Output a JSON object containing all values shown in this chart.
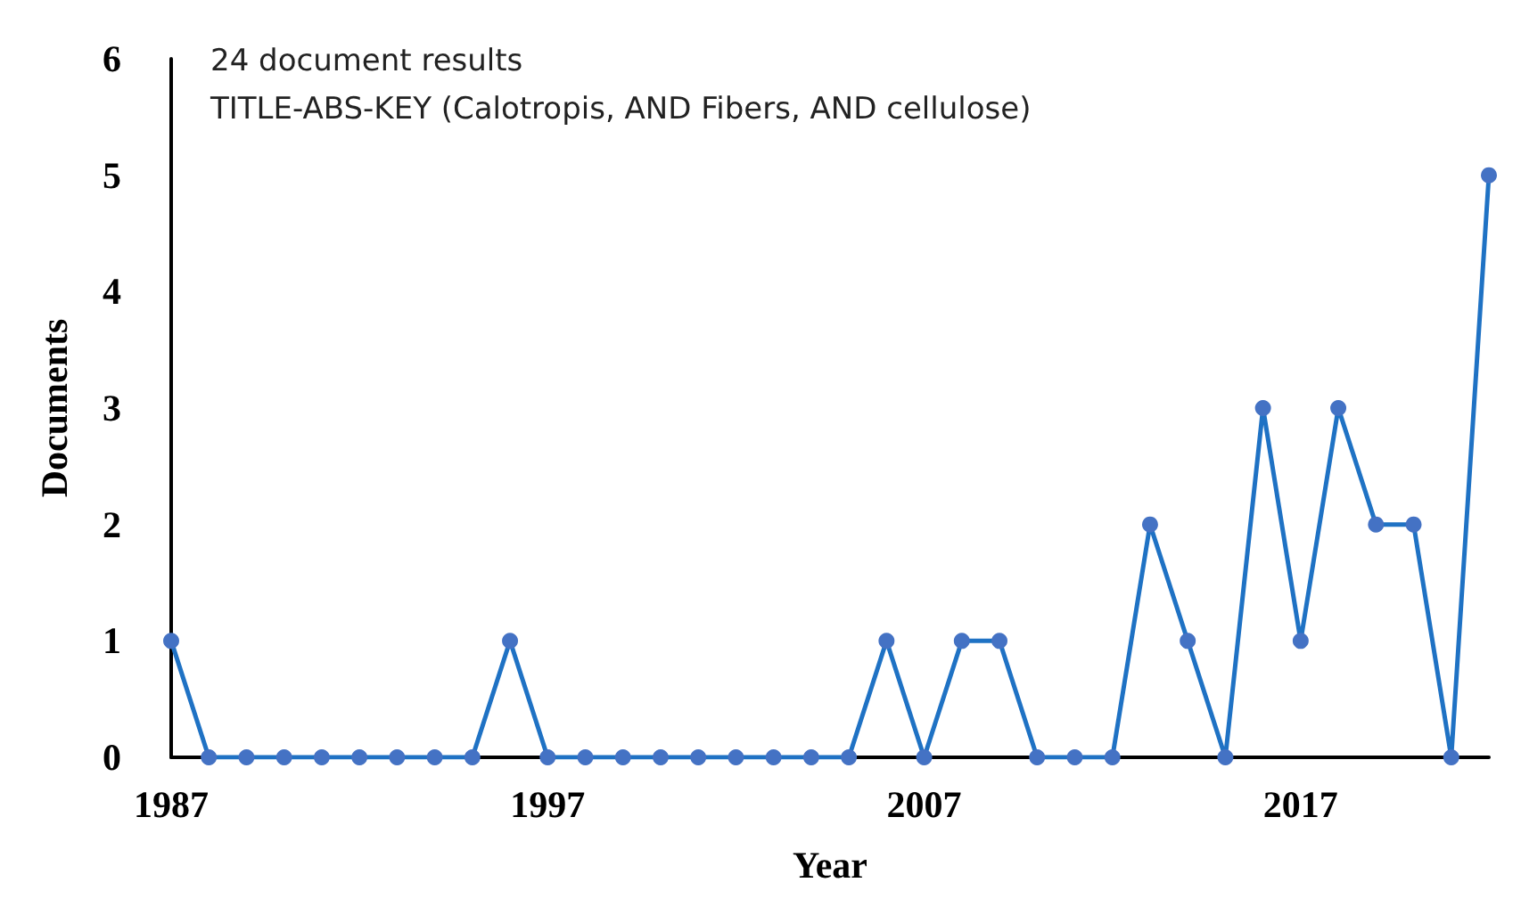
{
  "chart_data": {
    "type": "line",
    "xlabel": "Year",
    "ylabel": "Documents",
    "annotations": [
      "24 document results",
      "TITLE-ABS-KEY (Calotropis, AND Fibers, AND cellulose)"
    ],
    "x": [
      1987,
      1988,
      1989,
      1990,
      1991,
      1992,
      1993,
      1994,
      1995,
      1996,
      1997,
      1998,
      1999,
      2000,
      2001,
      2002,
      2003,
      2004,
      2005,
      2006,
      2007,
      2008,
      2009,
      2010,
      2011,
      2012,
      2013,
      2014,
      2015,
      2016,
      2017,
      2018,
      2019,
      2020,
      2021,
      2022
    ],
    "series": [
      {
        "color": "#1f72c4",
        "values": [
          1,
          0,
          0,
          0,
          0,
          0,
          0,
          0,
          0,
          1,
          0,
          0,
          0,
          0,
          0,
          0,
          0,
          0,
          0,
          1,
          0,
          1,
          1,
          0,
          0,
          0,
          2,
          1,
          0,
          3,
          1,
          3,
          2,
          2,
          0,
          5
        ]
      }
    ],
    "xlim": [
      1987,
      2022
    ],
    "xticks": [
      1987,
      1997,
      2007,
      2017
    ],
    "ylim": [
      0,
      6
    ],
    "yticks": [
      0,
      1,
      2,
      3,
      4,
      5,
      6
    ],
    "grid": false,
    "marker": "circle",
    "line_style": "solid"
  }
}
